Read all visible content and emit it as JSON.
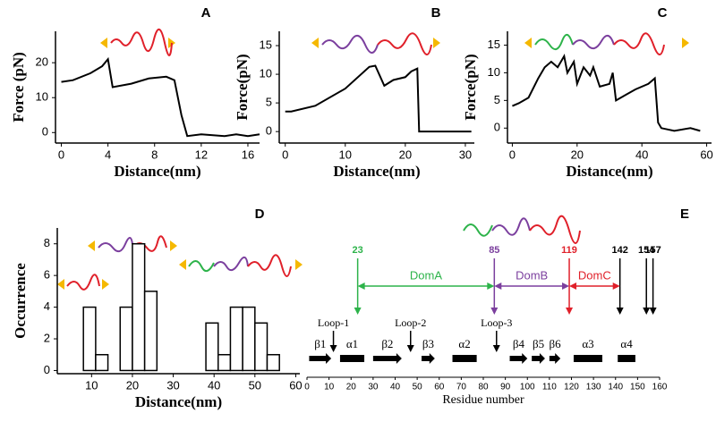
{
  "chart_data": [
    {
      "type": "line",
      "title": "A",
      "x_label": "Distance(nm)",
      "y_label": "Force (pN)",
      "color": "#000000",
      "x": [
        0,
        1,
        2.5,
        3.5,
        4,
        4.4,
        6,
        7.5,
        9,
        9.7,
        10.3,
        10.8,
        12,
        14,
        15,
        16,
        17
      ],
      "values": [
        14.5,
        15,
        17,
        19,
        21,
        13,
        14,
        15.5,
        16,
        15,
        5,
        -1,
        -0.5,
        -1,
        -0.5,
        -1,
        -0.5
      ],
      "xlim": [
        -0.5,
        17
      ],
      "ylim": [
        -3,
        29
      ],
      "xticks": [
        0,
        4,
        8,
        12,
        16
      ],
      "yticks": [
        0,
        10,
        20
      ]
    },
    {
      "type": "line",
      "title": "B",
      "x_label": "Distance(nm)",
      "y_label": "Force(pN)",
      "color": "#000000",
      "x": [
        0,
        1,
        5,
        10,
        14,
        15,
        16.5,
        18,
        20,
        21,
        22,
        22.3,
        25,
        31
      ],
      "values": [
        3.5,
        3.5,
        4.5,
        7.5,
        11.3,
        11.5,
        8,
        9,
        9.5,
        10.5,
        11,
        0,
        0,
        0
      ],
      "xlim": [
        -1,
        31.5
      ],
      "ylim": [
        -2,
        17.5
      ],
      "xticks": [
        0,
        10,
        20,
        30
      ],
      "yticks": [
        0,
        5,
        10,
        15
      ]
    },
    {
      "type": "line",
      "title": "C",
      "x_label": "Distance(nm)",
      "y_label": "Force(pN)",
      "color": "#000000",
      "x": [
        0,
        2,
        5,
        8,
        10,
        12,
        14,
        16,
        17,
        19,
        20,
        22,
        24,
        25,
        27,
        30,
        31,
        32,
        35,
        38,
        42,
        44,
        45,
        46,
        50,
        55,
        58
      ],
      "values": [
        4,
        4.5,
        5.5,
        9,
        11,
        12,
        11,
        13,
        10,
        12,
        8,
        11,
        9.5,
        11,
        7.5,
        8,
        10,
        5,
        6,
        7,
        8,
        9,
        1,
        0,
        -0.5,
        0,
        -0.5
      ],
      "xlim": [
        -1.5,
        61.5
      ],
      "ylim": [
        -2.7,
        17.5
      ],
      "xticks": [
        0,
        20,
        40,
        60
      ],
      "yticks": [
        0,
        5,
        10,
        15
      ]
    },
    {
      "type": "histogram",
      "title": "D",
      "x_label": "Distance(nm)",
      "y_label": "Occurrence",
      "color": "#ffffff",
      "bins": [
        8,
        11,
        14,
        17,
        20,
        23,
        26,
        29,
        32,
        35,
        38,
        41,
        44,
        47,
        50,
        53,
        56
      ],
      "values": [
        4,
        1,
        0,
        4,
        8,
        5,
        0,
        0,
        0,
        0,
        3,
        1,
        4,
        4,
        3,
        1
      ],
      "xlim": [
        1.6,
        61
      ],
      "ylim": [
        -0.2,
        9
      ],
      "xticks": [
        10,
        20,
        30,
        40,
        50,
        60
      ],
      "yticks": [
        0,
        2,
        4,
        6,
        8
      ]
    },
    {
      "type": "residue-map",
      "title": "E",
      "x_label": "Residue number",
      "xlim": [
        0,
        160
      ],
      "xticks": [
        0,
        10,
        20,
        30,
        40,
        50,
        60,
        70,
        80,
        90,
        100,
        110,
        120,
        130,
        140,
        150,
        160
      ],
      "markers": [
        {
          "value": 23,
          "color": "#2db34a"
        },
        {
          "value": 85,
          "color": "#7b3f9e"
        },
        {
          "value": 119,
          "color": "#e0202a"
        },
        {
          "value": 142,
          "color": "#000000"
        },
        {
          "value": 154,
          "color": "#000000"
        },
        {
          "value": 157,
          "color": "#000000"
        }
      ],
      "domains": [
        {
          "name": "DomA",
          "start": 23,
          "end": 85,
          "color": "#2db34a"
        },
        {
          "name": "DomB",
          "start": 85,
          "end": 119,
          "color": "#7b3f9e"
        },
        {
          "name": "DomC",
          "start": 119,
          "end": 142,
          "color": "#e0202a"
        }
      ],
      "loops": [
        {
          "name": "Loop-1",
          "value": 12
        },
        {
          "name": "Loop-2",
          "value": 47
        },
        {
          "name": "Loop-3",
          "value": 86
        }
      ],
      "elements": [
        {
          "name": "β1",
          "start": 1,
          "end": 11,
          "kind": "strand"
        },
        {
          "name": "α1",
          "start": 15,
          "end": 26,
          "kind": "helix"
        },
        {
          "name": "β2",
          "start": 30,
          "end": 43,
          "kind": "strand"
        },
        {
          "name": "β3",
          "start": 52,
          "end": 58,
          "kind": "strand"
        },
        {
          "name": "α2",
          "start": 66,
          "end": 77,
          "kind": "helix"
        },
        {
          "name": "β4",
          "start": 92,
          "end": 100,
          "kind": "strand"
        },
        {
          "name": "β5",
          "start": 102,
          "end": 108,
          "kind": "strand"
        },
        {
          "name": "β6",
          "start": 110,
          "end": 115,
          "kind": "strand"
        },
        {
          "name": "α3",
          "start": 121,
          "end": 134,
          "kind": "helix"
        },
        {
          "name": "α4",
          "start": 141,
          "end": 149,
          "kind": "helix"
        }
      ]
    }
  ]
}
